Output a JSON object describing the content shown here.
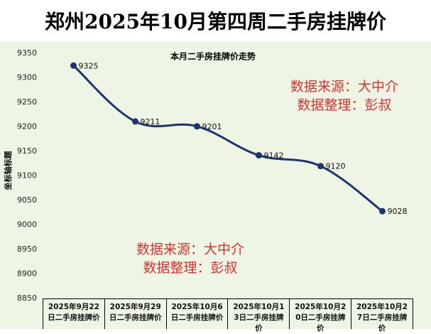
{
  "chart_data": {
    "type": "line",
    "title": "郑州2025年10月第四周二手房挂牌价",
    "subtitle": "本月二手房挂牌价走势",
    "y_label": "坐标轴标题",
    "categories": [
      "2025年9月22日二手房挂牌价",
      "2025年9月29日二手房挂牌价",
      "2025年10月6日二手房挂牌价",
      "2025年10月13日二手房挂牌价",
      "2025年10月20日二手房挂牌价",
      "2025年10月27日二手房挂牌价"
    ],
    "series": [
      {
        "name": "二手房挂牌价",
        "color": "#1c3470",
        "values": [
          9325,
          9211,
          9201,
          9142,
          9120,
          9028
        ]
      }
    ],
    "ylim": [
      8850,
      9350
    ],
    "yticks": [
      8850,
      8900,
      8950,
      9000,
      9050,
      9100,
      9150,
      9200,
      9250,
      9300,
      9350
    ],
    "grid": false,
    "annotations": [
      "数据来源：大中介",
      "数据整理：彭叔",
      "数据来源：大中介",
      "数据整理：彭叔"
    ]
  }
}
